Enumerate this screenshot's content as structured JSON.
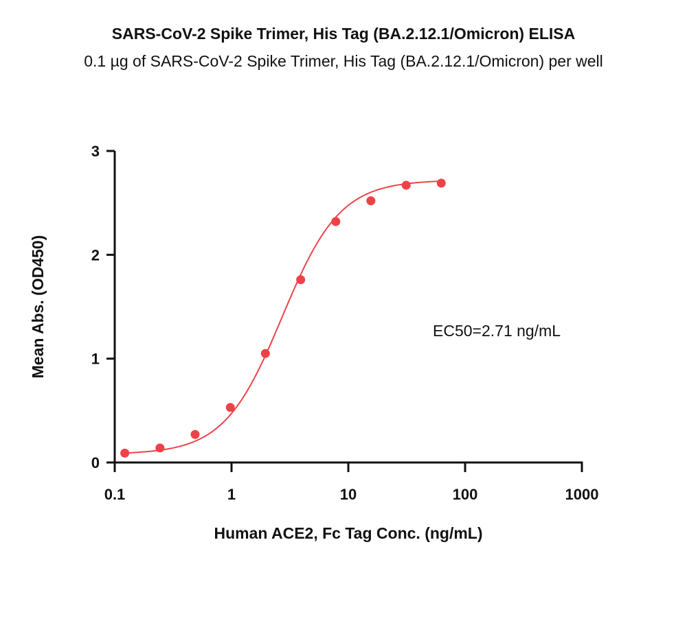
{
  "chart_data": {
    "type": "scatter",
    "title": "SARS-CoV-2 Spike Trimer, His Tag (BA.2.12.1/Omicron) ELISA",
    "subtitle": "0.1 µg of SARS-CoV-2 Spike Trimer, His Tag (BA.2.12.1/Omicron) per well",
    "xlabel": "Human ACE2, Fc Tag Conc. (ng/mL)",
    "ylabel": "Mean Abs. (OD450)",
    "xscale": "log",
    "xlim": [
      0.1,
      1000
    ],
    "ylim": [
      0,
      3
    ],
    "xticks": [
      "0.1",
      "1",
      "10",
      "100",
      "1000"
    ],
    "yticks": [
      "0",
      "1",
      "2",
      "3"
    ],
    "grid": false,
    "annotation": "EC50=2.71 ng/mL",
    "point_color": "#ee4248",
    "curve_color": "#ee4248",
    "series": [
      {
        "x": [
          0.122,
          0.244,
          0.488,
          0.977,
          1.95,
          3.91,
          7.81,
          15.6,
          31.3,
          62.5
        ],
        "y": [
          0.09,
          0.14,
          0.27,
          0.53,
          1.05,
          1.76,
          2.32,
          2.52,
          2.67,
          2.69
        ]
      }
    ],
    "fit": {
      "model": "4PL",
      "bottom": 0.08,
      "top": 2.72,
      "ec50": 2.71,
      "hill": 1.75
    }
  }
}
